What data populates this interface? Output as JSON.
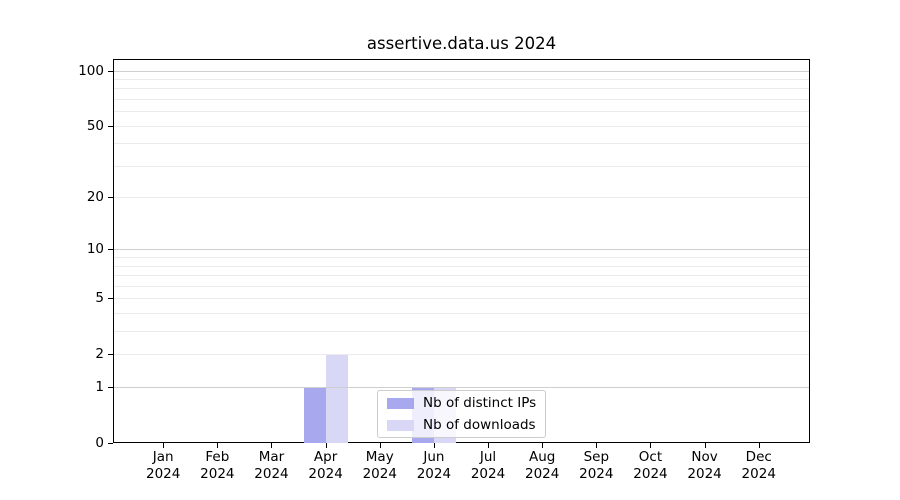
{
  "chart_data": {
    "type": "bar",
    "title": "assertive.data.us 2024",
    "categories": [
      "Jan 2024",
      "Feb 2024",
      "Mar 2024",
      "Apr 2024",
      "May 2024",
      "Jun 2024",
      "Jul 2024",
      "Aug 2024",
      "Sep 2024",
      "Oct 2024",
      "Nov 2024",
      "Dec 2024"
    ],
    "series": [
      {
        "name": "Nb of distinct IPs",
        "color": "#a8a8ee",
        "values": [
          0,
          0,
          0,
          1,
          0,
          1,
          0,
          0,
          0,
          0,
          0,
          0
        ]
      },
      {
        "name": "Nb of downloads",
        "color": "#d8d8f6",
        "values": [
          0,
          0,
          0,
          2,
          0,
          1,
          0,
          0,
          0,
          0,
          0,
          0
        ]
      }
    ],
    "xlabel": "",
    "ylabel": "",
    "y_axis": {
      "scale": "log1p",
      "ylim": [
        0,
        100
      ],
      "tick_values": [
        0,
        1,
        2,
        5,
        10,
        20,
        50,
        100
      ],
      "major_gridlines": [
        1,
        10,
        100
      ],
      "minor_gridlines": [
        2,
        3,
        4,
        5,
        6,
        7,
        8,
        9,
        20,
        30,
        40,
        50,
        60,
        70,
        80,
        90
      ]
    },
    "legend": {
      "position": "inside-plot bottom-center",
      "entries": [
        "Nb of distinct IPs",
        "Nb of downloads"
      ]
    },
    "grid": "horizontal-only",
    "colors": {
      "major_grid": "#cfcfcf",
      "minor_grid": "#ebebeb",
      "spine": "#000000",
      "background": "#ffffff",
      "text": "#000000"
    }
  }
}
